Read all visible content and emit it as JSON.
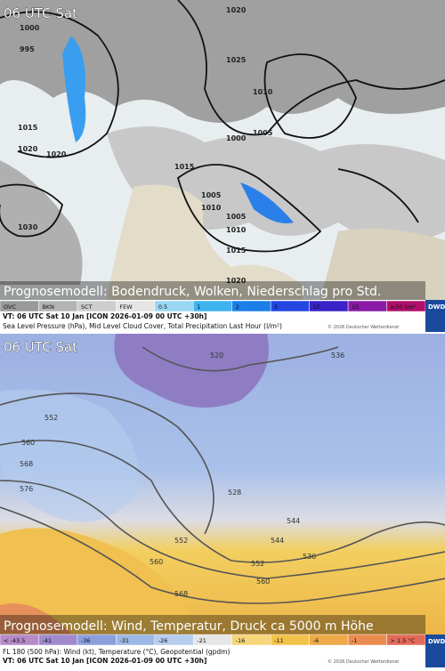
{
  "top_panel": {
    "time": "06 UTC Sat",
    "caption": "Prognosemodell: Bodendruck, Wolken, Niederschlag pro Std.",
    "legend": [
      {
        "label": "OVC",
        "color": "#9a9a9a"
      },
      {
        "label": "BKN",
        "color": "#b4b4b4"
      },
      {
        "label": "SCT",
        "color": "#cdcdcd"
      },
      {
        "label": "FEW",
        "color": "#e4e4e4"
      },
      {
        "label": "0.5",
        "color": "#9ad7f5"
      },
      {
        "label": "1",
        "color": "#3fb2f0"
      },
      {
        "label": "2",
        "color": "#1c7fe8"
      },
      {
        "label": "5",
        "color": "#2546e0"
      },
      {
        "label": "10",
        "color": "#3a22c8"
      },
      {
        "label": "25",
        "color": "#8a1aa8"
      },
      {
        "label": "≥50 l/m²",
        "color": "#b0106a"
      }
    ],
    "valid": "VT: 06 UTC Sat  10 Jan [ICON 2026-01-09 00 UTC +30h]",
    "description": "Sea Level Pressure (hPa), Mid Level Cloud Cover, Total Precipitation Last Hour (l/m²)",
    "copyright": "© 2026 Deutscher Wetterdienst",
    "logo": "DWD",
    "isobar_labels": [
      "1000",
      "995",
      "1015",
      "1020",
      "1020",
      "1030",
      "1015",
      "1005",
      "1010",
      "1005",
      "1010",
      "1015",
      "1020",
      "1025",
      "1020",
      "1010",
      "1005",
      "1000"
    ]
  },
  "bottom_panel": {
    "time": "06 UTC Sat",
    "caption": "Prognosemodell: Wind, Temperatur, Druck ca 5000 m Höhe",
    "legend": [
      {
        "label": "< -43.5",
        "color": "#b48ac8"
      },
      {
        "label": "-41",
        "color": "#9f8ad0"
      },
      {
        "label": "-36",
        "color": "#8c9fdc"
      },
      {
        "label": "-31",
        "color": "#9cb8e6"
      },
      {
        "label": "-26",
        "color": "#b6cdee"
      },
      {
        "label": "-21",
        "color": "#e6e6e6"
      },
      {
        "label": "-16",
        "color": "#f5d67a"
      },
      {
        "label": "-11",
        "color": "#f2c24a"
      },
      {
        "label": "-6",
        "color": "#eeaa48"
      },
      {
        "label": "-1",
        "color": "#ea8c50"
      },
      {
        "label": "> 1.5 °C",
        "color": "#e26a5a"
      }
    ],
    "valid": "VT: 06 UTC Sat  10 Jan [ICON 2026-01-09 00 UTC +30h]",
    "description": "FL 180 (500 hPa): Wind (kt), Temperature (°C), Geopotential (gpdm)",
    "copyright": "© 2026 Deutscher Wetterdienst",
    "logo": "DWD",
    "contour_labels": [
      "520",
      "528",
      "536",
      "544",
      "552",
      "560",
      "568",
      "576",
      "552",
      "560",
      "568",
      "536",
      "544",
      "552",
      "560"
    ]
  }
}
